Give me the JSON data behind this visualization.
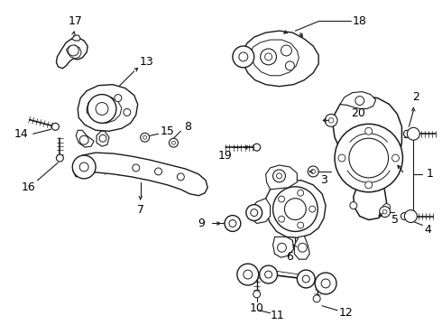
{
  "background_color": "#ffffff",
  "line_color": "#1a1a1a",
  "text_color": "#000000",
  "fig_width": 4.9,
  "fig_height": 3.6,
  "dpi": 100
}
